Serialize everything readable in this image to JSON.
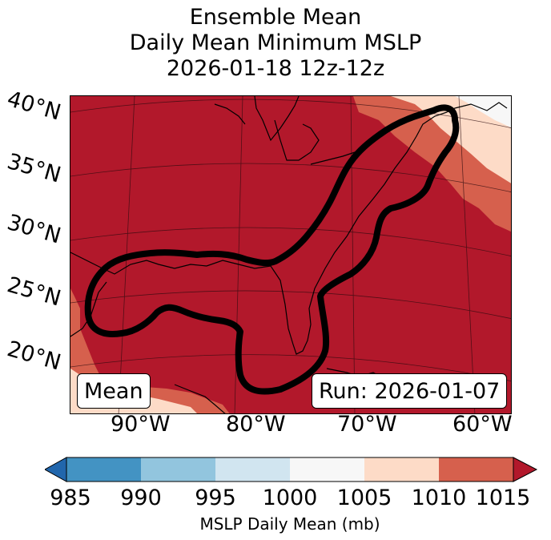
{
  "title": {
    "line1": "Ensemble Mean",
    "line2": "Daily Mean Minimum MSLP",
    "line3": "2026-01-18 12z-12z"
  },
  "map": {
    "lat_labels": [
      "40°N",
      "35°N",
      "30°N",
      "25°N",
      "20°N"
    ],
    "lon_labels": [
      "90°W",
      "80°W",
      "70°W",
      "60°W"
    ],
    "mean_box": "Mean",
    "run_box": "Run: 2026-01-07"
  },
  "colorbar": {
    "ticks": [
      "985",
      "990",
      "995",
      "1000",
      "1005",
      "1010",
      "1015"
    ],
    "colors": [
      "#2166ac",
      "#4393c3",
      "#92c5de",
      "#d1e5f0",
      "#f7f7f7",
      "#fddbc7",
      "#d6604d",
      "#b2182b"
    ],
    "label": "MSLP Daily Mean (mb)"
  },
  "legend_colors": {
    "field_dominant": "#b2182b",
    "contour": "#000000"
  }
}
